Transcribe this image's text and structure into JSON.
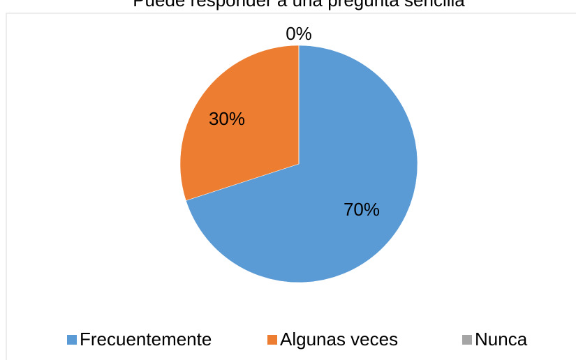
{
  "chart_data": {
    "type": "pie",
    "title": "Puede responder a una pregunta sencilla",
    "categories": [
      "Frecuentemente",
      "Algunas veces",
      "Nunca"
    ],
    "values": [
      70,
      30,
      0
    ],
    "value_labels": [
      "70%",
      "30%",
      "0%"
    ],
    "colors": [
      "#5b9bd5",
      "#ed7d31",
      "#a5a5a5"
    ],
    "legend": "bottom"
  }
}
